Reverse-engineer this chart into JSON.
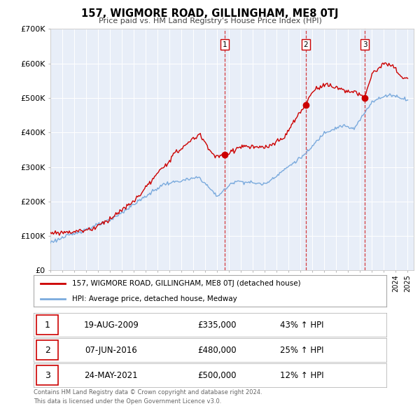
{
  "title": "157, WIGMORE ROAD, GILLINGHAM, ME8 0TJ",
  "subtitle": "Price paid vs. HM Land Registry's House Price Index (HPI)",
  "ylim": [
    0,
    700000
  ],
  "yticks": [
    0,
    100000,
    200000,
    300000,
    400000,
    500000,
    600000,
    700000
  ],
  "ytick_labels": [
    "£0",
    "£100K",
    "£200K",
    "£300K",
    "£400K",
    "£500K",
    "£600K",
    "£700K"
  ],
  "xlim_start": 1995.0,
  "xlim_end": 2025.5,
  "background_color": "#ffffff",
  "plot_bg_color": "#e8eef8",
  "grid_color": "#ffffff",
  "sale_color": "#cc0000",
  "hpi_color": "#7aaadd",
  "transactions": [
    {
      "num": 1,
      "date": 2009.63,
      "price": 335000,
      "label": "19-AUG-2009",
      "price_str": "£335,000",
      "pct": "43% ↑ HPI"
    },
    {
      "num": 2,
      "date": 2016.44,
      "price": 480000,
      "label": "07-JUN-2016",
      "price_str": "£480,000",
      "pct": "25% ↑ HPI"
    },
    {
      "num": 3,
      "date": 2021.39,
      "price": 500000,
      "label": "24-MAY-2021",
      "price_str": "£500,000",
      "pct": "12% ↑ HPI"
    }
  ],
  "legend_label_sale": "157, WIGMORE ROAD, GILLINGHAM, ME8 0TJ (detached house)",
  "legend_label_hpi": "HPI: Average price, detached house, Medway",
  "footer_line1": "Contains HM Land Registry data © Crown copyright and database right 2024.",
  "footer_line2": "This data is licensed under the Open Government Licence v3.0.",
  "hpi_anchors_x": [
    1995.0,
    2000.0,
    2004.5,
    2007.5,
    2009.0,
    2010.5,
    2013.0,
    2016.5,
    2018.0,
    2019.5,
    2020.5,
    2022.0,
    2023.5,
    2025.0
  ],
  "hpi_anchors_y": [
    82000,
    145000,
    250000,
    270000,
    215000,
    260000,
    250000,
    340000,
    400000,
    420000,
    410000,
    490000,
    510000,
    495000
  ],
  "prop_anchors_x": [
    1995.0,
    1997.0,
    1998.5,
    2000.0,
    2002.0,
    2004.0,
    2005.5,
    2007.5,
    2008.8,
    2009.63,
    2011.0,
    2013.0,
    2014.5,
    2016.0,
    2016.44,
    2017.0,
    2018.0,
    2019.0,
    2020.0,
    2021.0,
    2021.39,
    2022.0,
    2023.0,
    2023.8,
    2024.5,
    2025.0
  ],
  "prop_anchors_y": [
    108000,
    113000,
    120000,
    150000,
    200000,
    280000,
    340000,
    395000,
    330000,
    335000,
    360000,
    355000,
    380000,
    460000,
    480000,
    520000,
    540000,
    530000,
    520000,
    510000,
    500000,
    570000,
    600000,
    590000,
    560000,
    555000
  ]
}
